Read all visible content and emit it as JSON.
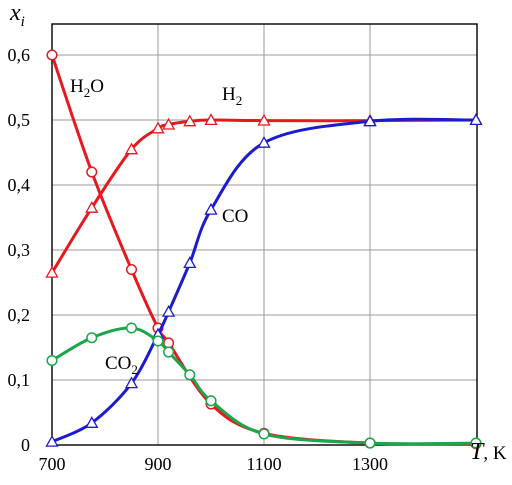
{
  "chart_data": {
    "type": "line",
    "ylabel": "x",
    "ylabel_sub": "i",
    "xlabel_var": "T",
    "xlabel_unit": ", K",
    "xlim": [
      700,
      1500
    ],
    "ylim": [
      0,
      0.65
    ],
    "grid": true,
    "x_tick_labels": [
      "700",
      "900",
      "1100",
      "1300"
    ],
    "y_tick_labels": [
      "0",
      "0,1",
      "0,2",
      "0,3",
      "0,4",
      "0,5",
      "0,6"
    ],
    "series": [
      {
        "name": "H2O",
        "label_main": "H",
        "label_sub": "2",
        "label_tail": "O",
        "color": "#e8191e",
        "marker": "circle",
        "x": [
          700,
          775,
          850,
          900,
          920,
          1000,
          1100,
          1300,
          1500
        ],
        "y": [
          0.6,
          0.42,
          0.27,
          0.18,
          0.157,
          0.063,
          0.018,
          0.003,
          0.002
        ]
      },
      {
        "name": "H2",
        "label_main": "H",
        "label_sub": "2",
        "label_tail": "",
        "color": "#e8191e",
        "marker": "triangle",
        "x": [
          700,
          775,
          850,
          900,
          920,
          960,
          1000,
          1100,
          1300,
          1500
        ],
        "y": [
          0.265,
          0.365,
          0.455,
          0.487,
          0.493,
          0.498,
          0.5,
          0.499,
          0.499,
          0.5
        ]
      },
      {
        "name": "CO",
        "label_main": "CO",
        "label_sub": "",
        "label_tail": "",
        "color": "#1b1bd0",
        "marker": "triangle",
        "x": [
          700,
          775,
          850,
          900,
          920,
          960,
          1000,
          1100,
          1300,
          1500
        ],
        "y": [
          0.005,
          0.034,
          0.095,
          0.17,
          0.205,
          0.28,
          0.362,
          0.465,
          0.498,
          0.5
        ]
      },
      {
        "name": "CO2",
        "label_main": "CO",
        "label_sub": "2",
        "label_tail": "",
        "color": "#1aa64a",
        "marker": "circle",
        "x": [
          700,
          775,
          850,
          900,
          920,
          960,
          1000,
          1100,
          1300,
          1500
        ],
        "y": [
          0.13,
          0.165,
          0.18,
          0.16,
          0.143,
          0.108,
          0.068,
          0.017,
          0.003,
          0.003
        ]
      }
    ]
  }
}
